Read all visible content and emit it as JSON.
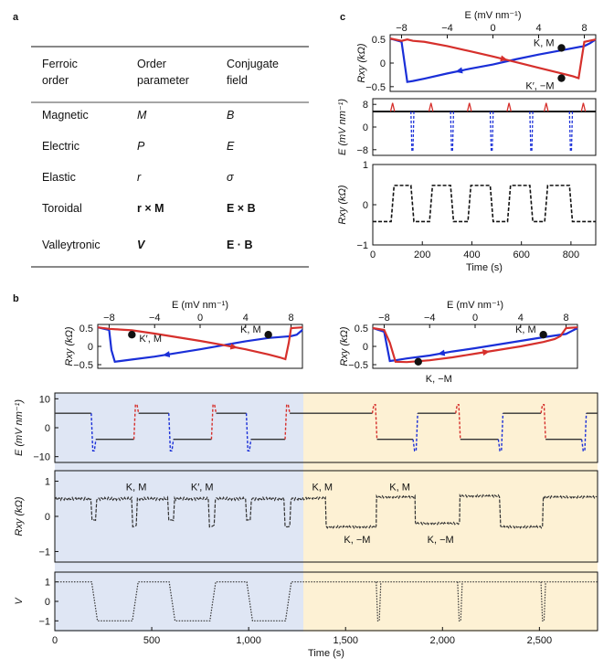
{
  "panel_labels": {
    "a": "a",
    "b": "b",
    "c": "c"
  },
  "table": {
    "headers": [
      "Ferroic order",
      "Order parameter",
      "Conjugate field"
    ],
    "header_lines": [
      [
        "Ferroic",
        "order"
      ],
      [
        "Order",
        "parameter"
      ],
      [
        "Conjugate",
        "field"
      ]
    ],
    "rows": [
      [
        "Magnetic",
        "M",
        "B"
      ],
      [
        "Electric",
        "P",
        "E"
      ],
      [
        "Elastic",
        "r",
        "σ"
      ],
      [
        "Toroidal",
        "r × M",
        "E × B"
      ],
      [
        "Valleytronic",
        "V",
        "E · B"
      ]
    ]
  },
  "colors": {
    "blue": "#1a2fd8",
    "red": "#d6302c",
    "black": "#111111",
    "blue_bg": "#dfe6f4",
    "yellow_bg": "#fdf1d4"
  },
  "chart_data": [
    {
      "id": "b-loop-left",
      "type": "line",
      "xlabel": "E (mV nm⁻¹)",
      "ylabel": "Rxy (kΩ)",
      "xlim": [
        -9,
        9
      ],
      "ylim": [
        -0.6,
        0.6
      ],
      "xticks": [
        "−8",
        "−4",
        "0",
        "4",
        "8"
      ],
      "xtick_values": [
        -8,
        -4,
        0,
        4,
        8
      ],
      "yticks": [
        "0.5",
        "0",
        "−0.5"
      ],
      "ytick_values": [
        0.5,
        0,
        -0.5
      ],
      "series": [
        {
          "name": "sweep down",
          "color": "blue",
          "x": [
            9,
            8.5,
            8,
            6,
            4,
            2,
            0,
            -2,
            -4,
            -6,
            -7,
            -7.5,
            -7.8,
            -8,
            -9
          ],
          "y": [
            0.45,
            0.32,
            0.28,
            0.23,
            0.14,
            0.03,
            -0.08,
            -0.18,
            -0.28,
            -0.36,
            -0.4,
            -0.42,
            -0.1,
            0.45,
            0.52
          ]
        },
        {
          "name": "sweep up",
          "color": "red",
          "x": [
            -9,
            -8,
            -7,
            -6,
            -4,
            -2,
            0,
            2,
            4,
            6,
            7,
            7.5,
            7.8,
            8,
            9
          ],
          "y": [
            0.52,
            0.48,
            0.46,
            0.44,
            0.35,
            0.25,
            0.15,
            0.04,
            -0.08,
            -0.22,
            -0.3,
            -0.35,
            0.1,
            0.5,
            0.52
          ]
        }
      ],
      "markers": [
        {
          "x": -6,
          "y": 0.32,
          "label": "K′, M"
        },
        {
          "x": 6,
          "y": 0.32,
          "label": "K, M"
        }
      ]
    },
    {
      "id": "b-loop-right",
      "type": "line",
      "xlabel": "E (mV nm⁻¹)",
      "ylabel": "Rxy (kΩ)",
      "xlim": [
        -9,
        9
      ],
      "ylim": [
        -0.6,
        0.6
      ],
      "xticks": [
        "−8",
        "−4",
        "0",
        "4",
        "8"
      ],
      "xtick_values": [
        -8,
        -4,
        0,
        4,
        8
      ],
      "yticks": [
        "0.5",
        "0",
        "−0.5"
      ],
      "ytick_values": [
        0.5,
        0,
        -0.5
      ],
      "series": [
        {
          "name": "sweep down",
          "color": "blue",
          "x": [
            9,
            8.5,
            8,
            6,
            4,
            2,
            0,
            -2,
            -4,
            -6,
            -7,
            -7.5,
            -8,
            -9
          ],
          "y": [
            0.5,
            0.42,
            0.34,
            0.25,
            0.15,
            0.05,
            -0.05,
            -0.14,
            -0.25,
            -0.33,
            -0.38,
            -0.4,
            0.4,
            0.5
          ]
        },
        {
          "name": "sweep up",
          "color": "red",
          "x": [
            -9,
            -8,
            -7.5,
            -7,
            -6,
            -4,
            -2,
            0,
            2,
            4,
            6,
            7,
            7.5,
            8,
            9
          ],
          "y": [
            0.5,
            0.45,
            0.1,
            -0.42,
            -0.43,
            -0.38,
            -0.3,
            -0.2,
            -0.1,
            0.0,
            0.12,
            0.2,
            0.28,
            0.5,
            0.52
          ]
        }
      ],
      "markers": [
        {
          "x": -5,
          "y": -0.42,
          "label": "K, −M"
        },
        {
          "x": 6,
          "y": 0.32,
          "label": "K, M"
        }
      ]
    },
    {
      "id": "b-time-E",
      "type": "line",
      "xlim": [
        0,
        2800
      ],
      "ylim": [
        -12,
        12
      ],
      "ylabel": "E (mV nm⁻¹)",
      "yticks": [
        "10",
        "0",
        "−10"
      ],
      "ytick_values": [
        10,
        0,
        -10
      ],
      "level_high": 5,
      "level_low": -4,
      "pulses": [
        {
          "t": 200,
          "type": "down-up",
          "color": "blue"
        },
        {
          "t": 420,
          "type": "up-down",
          "color": "red"
        },
        {
          "t": 600,
          "type": "down-up",
          "color": "blue"
        },
        {
          "t": 820,
          "type": "up-down",
          "color": "red"
        },
        {
          "t": 1000,
          "type": "down-up",
          "color": "blue"
        },
        {
          "t": 1200,
          "type": "up-down",
          "color": "red"
        },
        {
          "t": 1650,
          "type": "up-down",
          "color": "red"
        },
        {
          "t": 1860,
          "type": "down-up",
          "color": "blue"
        },
        {
          "t": 2080,
          "type": "up-down",
          "color": "red"
        },
        {
          "t": 2300,
          "type": "down-up",
          "color": "blue"
        },
        {
          "t": 2520,
          "type": "up-down",
          "color": "red"
        },
        {
          "t": 2730,
          "type": "down-up",
          "color": "blue"
        }
      ]
    },
    {
      "id": "b-time-Rxy",
      "type": "line",
      "xlim": [
        0,
        2800
      ],
      "ylim": [
        -1.3,
        1.3
      ],
      "ylabel": "Rxy (kΩ)",
      "yticks": [
        "1",
        "0",
        "−1"
      ],
      "ytick_values": [
        1,
        0,
        -1
      ],
      "annotations": [
        {
          "t": 420,
          "v": 0.85,
          "label": "K, M"
        },
        {
          "t": 760,
          "v": 0.85,
          "label": "K′, M"
        },
        {
          "t": 1380,
          "v": 0.85,
          "label": "K, M"
        },
        {
          "t": 1780,
          "v": 0.85,
          "label": "K, M"
        },
        {
          "t": 1560,
          "v": -0.65,
          "label": "K, −M"
        },
        {
          "t": 1990,
          "v": -0.65,
          "label": "K, −M"
        }
      ]
    },
    {
      "id": "b-time-V",
      "type": "line",
      "xlim": [
        0,
        2800
      ],
      "ylim": [
        -1.5,
        1.5
      ],
      "ylabel": "V",
      "yticks": [
        "1",
        "0",
        "−1"
      ],
      "ytick_values": [
        1,
        0,
        -1
      ],
      "xticks": [
        "0",
        "500",
        "1,000",
        "1,500",
        "2,000",
        "2,500"
      ],
      "xtick_values": [
        0,
        500,
        1000,
        1500,
        2000,
        2500
      ],
      "xlabel": "Time (s)",
      "steps": [
        [
          0,
          1
        ],
        [
          190,
          1
        ],
        [
          220,
          -1
        ],
        [
          400,
          -1
        ],
        [
          430,
          1
        ],
        [
          590,
          1
        ],
        [
          620,
          -1
        ],
        [
          800,
          -1
        ],
        [
          830,
          1
        ],
        [
          990,
          1
        ],
        [
          1020,
          -1
        ],
        [
          1190,
          -1
        ],
        [
          1220,
          1
        ],
        [
          2800,
          1
        ]
      ],
      "spikes_t": [
        1670,
        2090,
        2520
      ]
    },
    {
      "id": "c-loop",
      "type": "line",
      "xlabel": "E (mV nm⁻¹)",
      "ylabel": "Rxy (kΩ)",
      "xlim": [
        -9,
        9
      ],
      "ylim": [
        -0.6,
        0.6
      ],
      "xticks": [
        "−8",
        "−4",
        "0",
        "4",
        "8"
      ],
      "xtick_values": [
        -8,
        -4,
        0,
        4,
        8
      ],
      "yticks": [
        "0.5",
        "0",
        "−0.5"
      ],
      "ytick_values": [
        0.5,
        0,
        -0.5
      ],
      "series": [
        {
          "name": "sweep down",
          "color": "blue",
          "x": [
            9,
            8.5,
            8,
            6,
            4,
            2,
            0,
            -2,
            -4,
            -6,
            -7,
            -7.5,
            -8,
            -9
          ],
          "y": [
            0.5,
            0.42,
            0.36,
            0.27,
            0.18,
            0.08,
            -0.03,
            -0.12,
            -0.22,
            -0.33,
            -0.38,
            -0.4,
            0.45,
            0.52
          ]
        },
        {
          "name": "sweep up",
          "color": "red",
          "x": [
            -9,
            -8,
            -7.5,
            -7,
            -6,
            -4,
            -2,
            0,
            2,
            4,
            6,
            7,
            7.5,
            8,
            9
          ],
          "y": [
            0.52,
            0.47,
            0.5,
            0.47,
            0.45,
            0.36,
            0.25,
            0.14,
            0.02,
            -0.1,
            -0.22,
            -0.28,
            -0.32,
            0.45,
            0.5
          ]
        }
      ],
      "markers": [
        {
          "x": 6,
          "y": 0.32,
          "label": "K, M"
        },
        {
          "x": 6,
          "y": -0.32,
          "label": "K′, −M"
        }
      ]
    },
    {
      "id": "c-time-E",
      "type": "line",
      "xlim": [
        0,
        900
      ],
      "ylim": [
        -10,
        10
      ],
      "ylabel": "E (mV nm⁻¹)",
      "yticks": [
        "8",
        "0",
        "−8"
      ],
      "ytick_values": [
        8,
        0,
        -8
      ],
      "level": 5.5,
      "red_spikes_t": [
        80,
        235,
        390,
        550,
        700,
        850
      ],
      "blue_spikes_t": [
        160,
        320,
        480,
        640,
        800
      ]
    },
    {
      "id": "c-time-Rxy",
      "type": "line",
      "xlim": [
        0,
        900
      ],
      "ylim": [
        -1,
        1
      ],
      "ylabel": "Rxy (kΩ)",
      "xlabel": "Time (s)",
      "yticks": [
        "1",
        "0",
        "−1"
      ],
      "ytick_values": [
        1,
        0,
        -1
      ],
      "xticks": [
        "0",
        "200",
        "400",
        "600",
        "800"
      ],
      "xtick_values": [
        0,
        200,
        400,
        600,
        800
      ],
      "high": 0.48,
      "low": -0.42,
      "high_segments": [
        [
          80,
          160
        ],
        [
          235,
          320
        ],
        [
          390,
          480
        ],
        [
          550,
          640
        ],
        [
          700,
          800
        ]
      ]
    }
  ]
}
